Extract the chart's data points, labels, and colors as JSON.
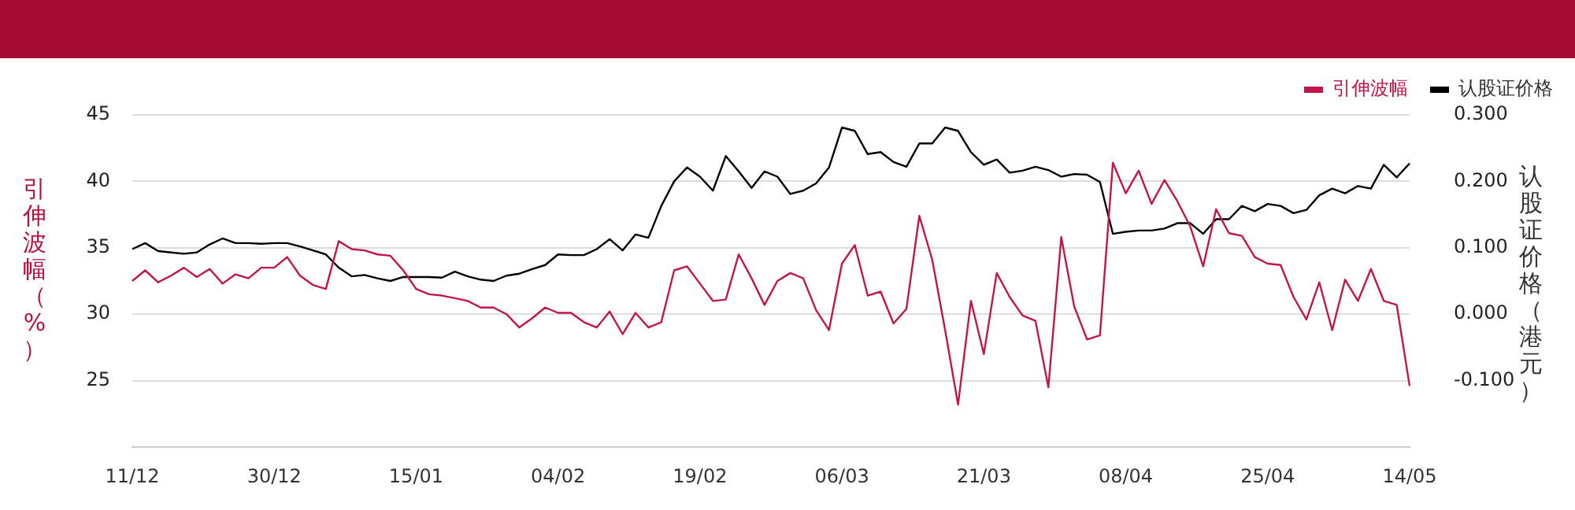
{
  "chart_data": {
    "type": "line",
    "ylabel": "引伸波幅（%）",
    "y2label": "认股证价格（港元）",
    "categories": [
      "11/12",
      null,
      null,
      null,
      null,
      null,
      null,
      null,
      null,
      null,
      null,
      "30/12",
      null,
      null,
      null,
      null,
      null,
      null,
      null,
      null,
      null,
      null,
      "15/01",
      null,
      null,
      null,
      null,
      null,
      null,
      null,
      null,
      null,
      null,
      "04/02",
      null,
      null,
      null,
      null,
      null,
      null,
      null,
      null,
      null,
      null,
      "19/02",
      null,
      null,
      null,
      null,
      null,
      null,
      null,
      null,
      null,
      null,
      "06/03",
      null,
      null,
      null,
      null,
      null,
      null,
      null,
      null,
      null,
      null,
      "21/03",
      null,
      null,
      null,
      null,
      null,
      null,
      null,
      null,
      null,
      null,
      "08/04",
      null,
      null,
      null,
      null,
      null,
      null,
      null,
      null,
      null,
      null,
      "25/04",
      null,
      null,
      null,
      null,
      null,
      null,
      null,
      null,
      null,
      null,
      "14/05"
    ],
    "series": [
      {
        "name": "引伸波幅",
        "color": "#c0174a",
        "values": [
          32.5,
          33.3,
          32.4,
          32.9,
          33.5,
          32.8,
          33.4,
          32.3,
          33.0,
          32.7,
          33.5,
          33.5,
          34.3,
          32.9,
          32.2,
          31.9,
          35.5,
          34.9,
          34.8,
          34.5,
          34.4,
          33.3,
          31.9,
          31.5,
          31.4,
          31.2,
          31.0,
          30.5,
          30.5,
          30.0,
          29.0,
          29.7,
          30.5,
          30.1,
          30.1,
          29.4,
          29.0,
          30.2,
          28.5,
          30.1,
          29.0,
          29.4,
          33.3,
          33.6,
          32.3,
          31.0,
          31.1,
          34.5,
          32.7,
          30.7,
          32.5,
          33.1,
          32.7,
          30.3,
          28.8,
          33.8,
          35.2,
          31.4,
          31.7,
          29.3,
          30.4,
          37.4,
          34.1,
          28.8,
          23.2,
          31.0,
          27.0,
          33.1,
          31.3,
          29.9,
          29.5,
          24.5,
          35.8,
          30.6,
          28.1,
          28.4,
          41.4,
          39.1,
          40.8,
          38.3,
          40.1,
          38.5,
          36.6,
          33.6,
          37.9,
          36.1,
          35.9,
          34.3,
          33.8,
          33.7,
          31.3,
          29.6,
          32.4,
          28.8,
          32.6,
          31.0,
          33.4,
          31.0,
          30.7,
          24.6
        ]
      },
      {
        "name": "认股证价格",
        "color": "#000000",
        "axis": "y2",
        "values": [
          0.098,
          0.107,
          0.095,
          0.093,
          0.091,
          0.093,
          0.105,
          0.114,
          0.107,
          0.107,
          0.106,
          0.107,
          0.107,
          0.102,
          0.096,
          0.09,
          0.07,
          0.057,
          0.059,
          0.054,
          0.05,
          0.056,
          0.056,
          0.056,
          0.055,
          0.064,
          0.057,
          0.052,
          0.05,
          0.058,
          0.061,
          0.068,
          0.074,
          0.09,
          0.089,
          0.089,
          0.098,
          0.113,
          0.096,
          0.12,
          0.115,
          0.163,
          0.2,
          0.221,
          0.207,
          0.186,
          0.238,
          0.215,
          0.19,
          0.215,
          0.207,
          0.181,
          0.186,
          0.197,
          0.221,
          0.281,
          0.276,
          0.241,
          0.244,
          0.229,
          0.222,
          0.257,
          0.257,
          0.281,
          0.276,
          0.244,
          0.225,
          0.233,
          0.213,
          0.216,
          0.222,
          0.217,
          0.207,
          0.211,
          0.21,
          0.199,
          0.121,
          0.124,
          0.126,
          0.126,
          0.129,
          0.137,
          0.137,
          0.121,
          0.143,
          0.143,
          0.163,
          0.155,
          0.166,
          0.163,
          0.152,
          0.157,
          0.179,
          0.189,
          0.182,
          0.193,
          0.189,
          0.225,
          0.206,
          0.227
        ]
      }
    ],
    "ylim": [
      20,
      45
    ],
    "yticks": [
      25,
      30,
      35,
      40,
      45
    ],
    "y2lim": [
      -0.2,
      0.3
    ],
    "y2ticks": [
      {
        "value": -0.1,
        "label": "-0.100"
      },
      {
        "value": 0,
        "label": "0.000"
      },
      {
        "value": 0.1,
        "label": "0.100"
      },
      {
        "value": 0.2,
        "label": "0.200"
      },
      {
        "value": 0.3,
        "label": "0.300"
      }
    ],
    "grid": "y",
    "legend": "top right",
    "marker": "none",
    "line_style": "solid"
  }
}
